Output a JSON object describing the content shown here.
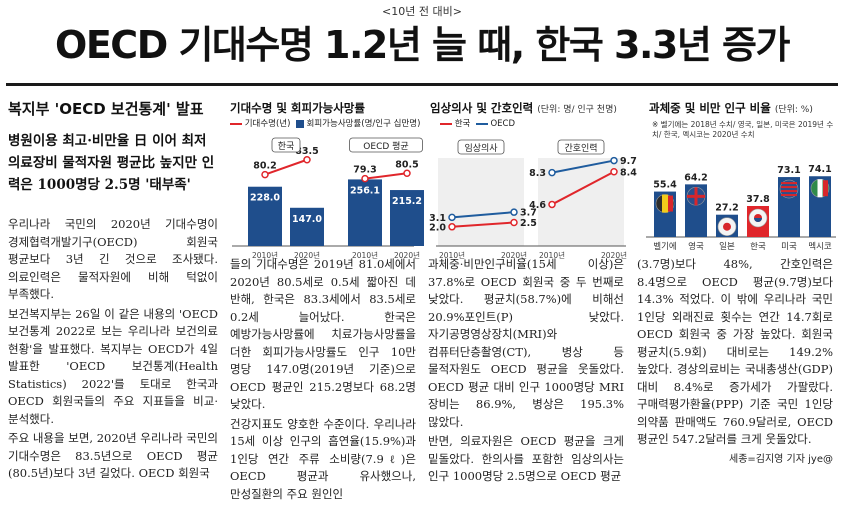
{
  "article": {
    "kicker": "<10년 전 대비>",
    "headline": "OECD 기대수명 1.2년 늘 때, 한국 3.3년 증가",
    "section": "복지부 'OECD 보건통계' 발표",
    "deck": "병원이용 최고·비만율 日 이어 최저 의료장비 물적자원 평균比 높지만 인력은 1000명당 2.5명 '태부족'",
    "col1": [
      "우리나라 국민의 2020년 기대수명이 경제협력개발기구(OECD) 회원국 평균보다 3년 긴 것으로 조사됐다. 의료인력은 물적자원에 비해 턱없이 부족했다.",
      "보건복지부는 26일 이 같은 내용의 'OECD 보건통계 2022로 보는 우리나라 보건의료 현황'을 발표했다. 복지부는 OECD가 4일 발표한 'OECD 보건통계(Health Statistics) 2022'를 토대로 한국과 OECD 회원국들의 주요 지표들을 비교·분석했다.",
      "주요 내용을 보면, 2020년 우리나라 국민의 기대수명은 83.5년으로 OECD 평균(80.5년)보다 3년 길었다. OECD 회원국"
    ],
    "col2": [
      "들의 기대수명은 2019년 81.0세에서 2020년 80.5세로 0.5세 짧아진 데 반해, 한국은 83.3세에서 83.5세로 0.2세 늘어났다. 한국은 예방가능사망률에 치료가능사망률을 더한 회피가능사망률도 인구 10만 명당 147.0명(2019년 기준)으로 OECD 평균인 215.2명보다 68.2명 낮았다.",
      "건강지표도 양호한 수준이다. 우리나라 15세 이상 인구의 흡연율(15.9%)과 1인당 연간 주류 소비량(7.9ℓ)은 OECD 평균과 유사했으나, 만성질환의 주요 원인인"
    ],
    "col3": [
      "과체중·비만인구비율(15세 이상)은 37.8%로 OECD 회원국 중 두 번째로 낮았다. 평균치(58.7%)에 비해선 20.9%포인트(P) 낮았다. 자기공명영상장치(MRI)와 컴퓨터단층촬영(CT), 병상 등 물적자원도 OECD 평균을 웃돌았다. OECD 평균 대비 인구 1000명당 MRI 장비는 86.9%, 병상은 195.3% 많았다.",
      "반면, 의료자원은 OECD 평균을 크게 밑돌았다. 한의사를 포함한 임상의사는 인구 1000명당 2.5명으로 OECD 평균"
    ],
    "col4": [
      "(3.7명)보다 48%, 간호인력은 8.4명으로 OECD 평균(9.7명)보다 14.3% 적었다. 이 밖에 우리나라 국민 1인당 외래진료 횟수는 연간 14.7회로 OECD 회원국 중 가장 높았다. 회원국 평균치(5.9회) 대비로는 149.2% 높았다. 경상의료비는 국내총생산(GDP) 대비 8.4%로 증가세가 가팔랐다. 구매력평가환율(PPP) 기준 국민 1인당 의약품 판매액도 760.9달러로, OECD 평균인 547.2달러를 크게 웃돌았다."
    ],
    "byline": "세종=김지영 기자 jye@"
  },
  "charts": {
    "c1": {
      "title": "기대수명 및 회피가능사망률",
      "legend_line": "기대수명(년)",
      "legend_bar": "회피가능사망률(명/인구 십만명)",
      "group_labels": [
        "한국",
        "OECD 평균"
      ],
      "x_labels": [
        "2010년",
        "2020년",
        "2010년",
        "2020년"
      ]
    },
    "c2": {
      "title": "임상의사 및 간호인력",
      "unit": "(단위: 명/ 인구 천명)",
      "legend": [
        "한국",
        "OECD"
      ],
      "group_labels": [
        "임상의사",
        "간호인력"
      ],
      "x_labels": [
        "2010년",
        "2020년",
        "2010년",
        "2020년"
      ]
    },
    "c3": {
      "title": "과체중 및 비만 인구 비율",
      "unit": "(단위: %)",
      "note": "※ 벨기에는 2018년 수치/ 영국, 일본, 미국은 2019년 수치/ 한국, 멕시코는 2020년 수치"
    }
  },
  "chart_data": [
    {
      "type": "bar",
      "title": "기대수명 및 회피가능사망률",
      "categories": [
        "한국 2010년",
        "한국 2020년",
        "OECD 평균 2010년",
        "OECD 평균 2020년"
      ],
      "series": [
        {
          "name": "회피가능사망률(명/인구 십만명)",
          "values": [
            228.0,
            147.0,
            256.1,
            215.2
          ]
        },
        {
          "name": "기대수명(년)",
          "values": [
            80.2,
            83.5,
            79.3,
            80.5
          ]
        }
      ],
      "colors": {
        "bar": "#1f4e8c",
        "line": "#e0262b"
      }
    },
    {
      "type": "line",
      "title": "임상의사 및 간호인력",
      "categories": [
        "임상의사 2010년",
        "임상의사 2020년",
        "간호인력 2010년",
        "간호인력 2020년"
      ],
      "series": [
        {
          "name": "한국",
          "values": [
            2.0,
            2.5,
            4.6,
            8.4
          ]
        },
        {
          "name": "OECD",
          "values": [
            3.1,
            3.7,
            8.3,
            9.7
          ]
        }
      ],
      "colors": {
        "한국": "#e0262b",
        "OECD": "#1f5c9e"
      }
    },
    {
      "type": "bar",
      "title": "과체중 및 비만 인구 비율",
      "categories": [
        "벨기에",
        "영국",
        "일본",
        "한국",
        "미국",
        "멕시코"
      ],
      "values": [
        55.4,
        64.2,
        27.2,
        37.8,
        73.1,
        74.1
      ],
      "colors": {
        "bar": "#1f4e8c",
        "korea": "#e0262b"
      }
    }
  ]
}
